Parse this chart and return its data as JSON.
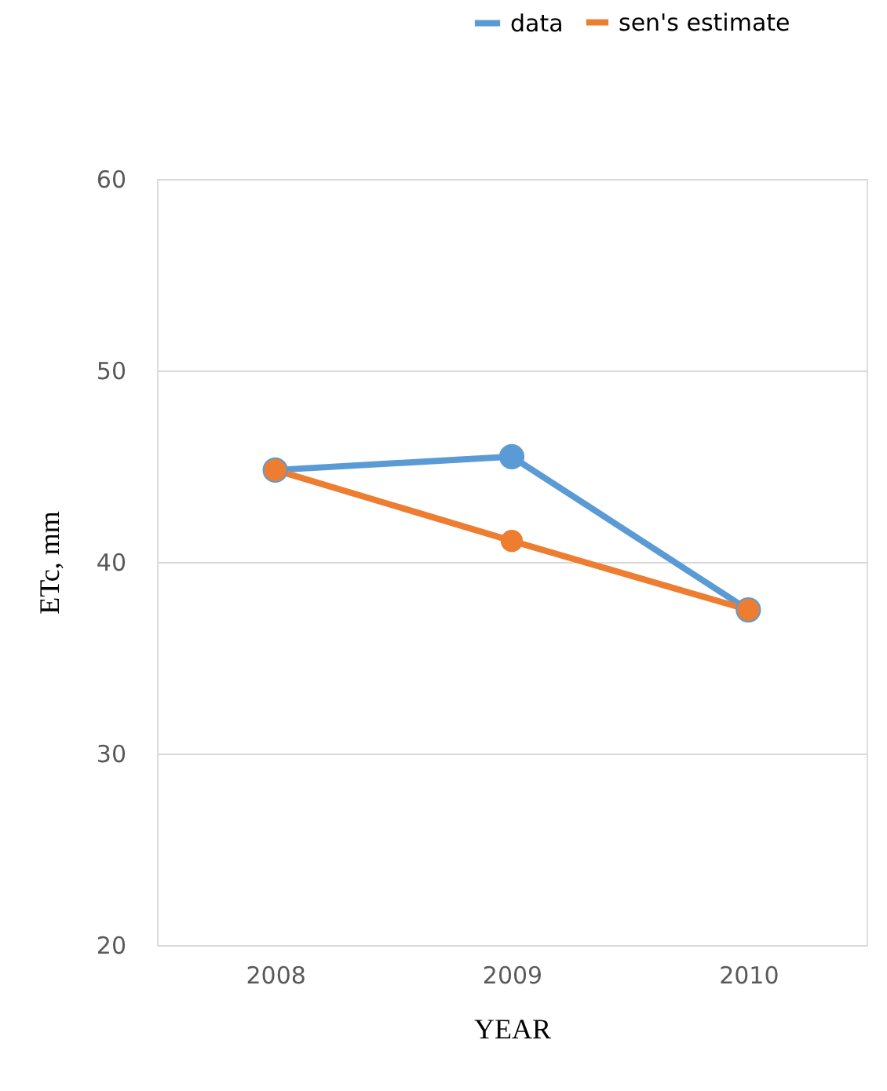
{
  "chart_data": {
    "type": "line",
    "xlabel": "YEAR",
    "ylabel": "ETc, mm",
    "categories": [
      "2008",
      "2009",
      "2010"
    ],
    "series": [
      {
        "name": "data",
        "color": "#5b9bd5",
        "values": [
          44.8,
          45.5,
          37.5
        ]
      },
      {
        "name": "sen's estimate",
        "color": "#ed7d31",
        "values": [
          44.8,
          41.1,
          37.5
        ]
      }
    ],
    "ylim": [
      20,
      60
    ],
    "yticks": [
      20,
      30,
      40,
      50,
      60
    ],
    "grid": "y",
    "legend": "top right",
    "marker": "circle",
    "line_style": "solid"
  }
}
